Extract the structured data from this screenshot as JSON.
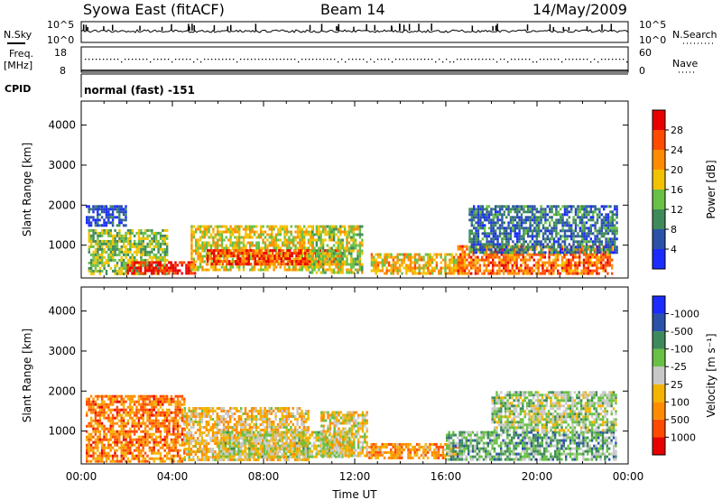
{
  "header": {
    "station": "Syowa East (fitACF)",
    "beam": "Beam 14",
    "date": "14/May/2009"
  },
  "noise_panel": {
    "left_label": "N.Sky",
    "right_label": "N.Search",
    "y_top_label": "10^5",
    "y_bottom_label": "10^0"
  },
  "freq_panel": {
    "left_label_1": "Freq.",
    "left_label_2": "[MHz]",
    "right_label": "Nave",
    "left_ticks": [
      "18",
      "8"
    ],
    "right_ticks": [
      "60",
      "0"
    ]
  },
  "cpid_panel": {
    "label": "CPID",
    "mode_text": "normal (fast) -151"
  },
  "colors": {
    "power_scale": [
      "#1a2cff",
      "#2a52a8",
      "#3e8a5a",
      "#68c044",
      "#f2c200",
      "#ff8c00",
      "#ff4a00",
      "#e80000"
    ],
    "velocity_scale": [
      "#e80000",
      "#ff4a00",
      "#ff8c00",
      "#f2b400",
      "#c8c8c8",
      "#68c044",
      "#3e8a5a",
      "#2a52a8",
      "#1a2cff"
    ]
  },
  "chart_data": [
    {
      "type": "heatmap",
      "name": "power",
      "ylabel": "Slant Range [km]",
      "ylim": [
        180,
        4600
      ],
      "yticks": [
        "1000",
        "2000",
        "3000",
        "4000"
      ],
      "xlim": [
        0,
        24
      ],
      "colorbar": {
        "label": "Power [dB]",
        "ticks": [
          "4",
          "8",
          "12",
          "16",
          "20",
          "24",
          "28"
        ]
      },
      "regions": [
        {
          "t0": 0.3,
          "t1": 3.8,
          "r0": 250,
          "r1": 1400,
          "level": 0.45
        },
        {
          "t0": 2.0,
          "t1": 5.0,
          "r0": 300,
          "r1": 600,
          "level": 0.95
        },
        {
          "t0": 4.8,
          "t1": 10.2,
          "r0": 400,
          "r1": 1500,
          "level": 0.55
        },
        {
          "t0": 5.5,
          "t1": 11.5,
          "r0": 500,
          "r1": 900,
          "level": 0.85
        },
        {
          "t0": 10.0,
          "t1": 12.3,
          "r0": 300,
          "r1": 1500,
          "level": 0.5
        },
        {
          "t0": 12.7,
          "t1": 16.8,
          "r0": 300,
          "r1": 800,
          "level": 0.6
        },
        {
          "t0": 16.5,
          "t1": 23.3,
          "r0": 300,
          "r1": 1000,
          "level": 0.75
        },
        {
          "t0": 17.0,
          "t1": 23.5,
          "r0": 800,
          "r1": 2000,
          "level": 0.25
        },
        {
          "t0": 0.2,
          "t1": 2.0,
          "r0": 1500,
          "r1": 2000,
          "level": 0.15
        }
      ]
    },
    {
      "type": "heatmap",
      "name": "velocity",
      "xlabel": "Time UT",
      "ylabel": "Slant Range [km]",
      "ylim": [
        180,
        4600
      ],
      "yticks": [
        "1000",
        "2000",
        "3000",
        "4000"
      ],
      "xlim": [
        0,
        24
      ],
      "xticks": [
        "00:00",
        "04:00",
        "08:00",
        "12:00",
        "16:00",
        "20:00",
        "00:00"
      ],
      "colorbar": {
        "label": "Velocity [m s⁻¹]",
        "ticks": [
          "1000",
          "500",
          "100",
          "25",
          "-25",
          "-100",
          "-500",
          "-1000"
        ]
      },
      "regions": [
        {
          "t0": 0.2,
          "t1": 4.5,
          "r0": 250,
          "r1": 1900,
          "level": 0.25
        },
        {
          "t0": 4.5,
          "t1": 10.0,
          "r0": 300,
          "r1": 1600,
          "level": 0.4
        },
        {
          "t0": 6.0,
          "t1": 11.8,
          "r0": 350,
          "r1": 1000,
          "level": 0.5
        },
        {
          "t0": 10.5,
          "t1": 12.5,
          "r0": 400,
          "r1": 1500,
          "level": 0.45
        },
        {
          "t0": 12.6,
          "t1": 16.5,
          "r0": 300,
          "r1": 700,
          "level": 0.3
        },
        {
          "t0": 16.0,
          "t1": 23.5,
          "r0": 300,
          "r1": 1000,
          "level": 0.65
        },
        {
          "t0": 18.0,
          "t1": 23.5,
          "r0": 1000,
          "r1": 2000,
          "level": 0.55
        }
      ]
    }
  ]
}
